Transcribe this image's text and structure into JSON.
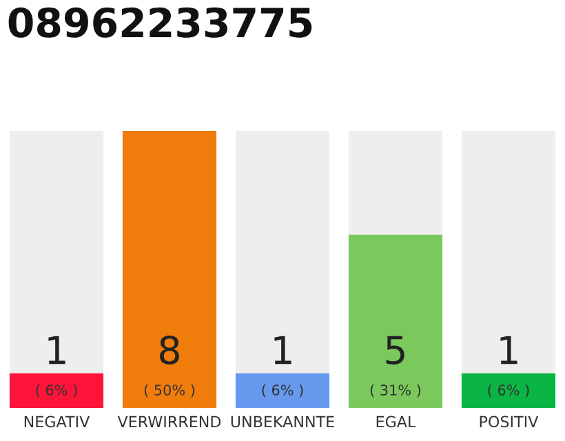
{
  "chart_data": {
    "type": "bar",
    "title": "08962233775",
    "categories": [
      "NEGATIV",
      "VERWIRREND",
      "UNBEKANNTE",
      "EGAL",
      "POSITIV"
    ],
    "values": [
      1,
      8,
      1,
      5,
      1
    ],
    "colors": [
      "#ff1439",
      "#f07c0c",
      "#6699ee",
      "#7bc95c",
      "#0bb545"
    ],
    "value_labels": [
      "1\n( 6% )",
      "8\n( 50% )",
      "1\n( 6% )",
      "5\n( 31% )",
      "1\n( 6% )"
    ]
  }
}
